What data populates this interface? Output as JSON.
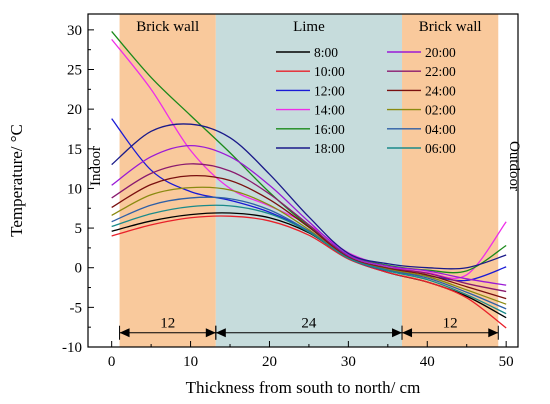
{
  "chart_data": {
    "type": "line",
    "xlabel": "Thickness from south to north/ cm",
    "ylabel": "Temperature/ °C",
    "xlim": [
      -3,
      51.5
    ],
    "ylim": [
      -10,
      32
    ],
    "xticks": [
      0,
      10,
      20,
      30,
      40,
      50
    ],
    "yticks": [
      -10,
      -5,
      0,
      5,
      10,
      15,
      20,
      25,
      30
    ],
    "grid": false,
    "legend_position": "upper center, two columns",
    "regions": [
      {
        "label": "Brick wall",
        "x_start": 1,
        "x_end": 13.2,
        "color": "#f9c99c"
      },
      {
        "label": "Lime",
        "x_start": 13.2,
        "x_end": 36.8,
        "color": "#c6dcdc"
      },
      {
        "label": "Brick wall",
        "x_start": 36.8,
        "x_end": 49,
        "color": "#f9c99c"
      }
    ],
    "side_labels": {
      "left": "Indoor",
      "right": "Outdoor"
    },
    "dimensions": [
      {
        "label": "12",
        "x_start": 1,
        "x_end": 13.2,
        "y": -8.2
      },
      {
        "label": "24",
        "x_start": 13.2,
        "x_end": 36.8,
        "y": -8.2
      },
      {
        "label": "12",
        "x_start": 36.8,
        "x_end": 49,
        "y": -8.2
      }
    ],
    "series": [
      {
        "name": "8:00",
        "color": "#000000",
        "x": [
          0,
          5,
          10,
          15,
          20,
          25,
          30,
          35,
          40,
          45,
          50
        ],
        "y": [
          4.6,
          5.9,
          6.7,
          6.9,
          6.3,
          4.4,
          1.2,
          -0.6,
          -1.8,
          -3.6,
          -6.3
        ]
      },
      {
        "name": "10:00",
        "color": "#e8202a",
        "x": [
          0,
          5,
          10,
          15,
          20,
          25,
          30,
          35,
          40,
          45,
          50
        ],
        "y": [
          4.0,
          5.4,
          6.3,
          6.5,
          5.9,
          4.1,
          1.1,
          -0.6,
          -1.8,
          -3.8,
          -7.6
        ]
      },
      {
        "name": "12:00",
        "color": "#1a1ad6",
        "x": [
          0,
          5,
          10,
          15,
          20,
          25,
          30,
          35,
          40,
          45,
          50
        ],
        "y": [
          18.8,
          12.3,
          9.6,
          8.5,
          7.0,
          4.6,
          1.2,
          -0.4,
          -1.0,
          -1.6,
          0.1
        ]
      },
      {
        "name": "14:00",
        "color": "#ee2ee8",
        "x": [
          0,
          5,
          10,
          15,
          20,
          25,
          30,
          35,
          40,
          45,
          50
        ],
        "y": [
          28.8,
          22.5,
          14.8,
          10.0,
          7.8,
          5.4,
          1.9,
          0.2,
          -0.6,
          -0.9,
          5.8
        ]
      },
      {
        "name": "16:00",
        "color": "#1a8a1a",
        "x": [
          0,
          5,
          10,
          15,
          20,
          25,
          30,
          35,
          40,
          45,
          50
        ],
        "y": [
          29.8,
          24.0,
          19.2,
          14.5,
          9.5,
          5.2,
          1.6,
          0.3,
          -0.3,
          -0.4,
          2.8
        ]
      },
      {
        "name": "18:00",
        "color": "#1a1a8a",
        "x": [
          0,
          5,
          10,
          15,
          20,
          25,
          30,
          35,
          40,
          45,
          50
        ],
        "y": [
          13.0,
          17.2,
          18.1,
          16.4,
          11.8,
          6.4,
          1.8,
          0.5,
          0.0,
          0.0,
          1.6
        ]
      },
      {
        "name": "20:00",
        "color": "#9a1ad6",
        "x": [
          0,
          5,
          10,
          15,
          20,
          25,
          30,
          35,
          40,
          45,
          50
        ],
        "y": [
          10.4,
          14.0,
          15.4,
          14.0,
          10.4,
          5.8,
          1.6,
          0.2,
          -0.4,
          -1.4,
          -2.2
        ]
      },
      {
        "name": "22:00",
        "color": "#8a1a6e",
        "x": [
          0,
          5,
          10,
          15,
          20,
          25,
          30,
          35,
          40,
          45,
          50
        ],
        "y": [
          8.8,
          11.9,
          13.1,
          12.2,
          9.3,
          5.4,
          1.4,
          0.0,
          -0.7,
          -2.0,
          -3.0
        ]
      },
      {
        "name": "24:00",
        "color": "#7a1010",
        "x": [
          0,
          5,
          10,
          15,
          20,
          25,
          30,
          35,
          40,
          45,
          50
        ],
        "y": [
          7.6,
          10.5,
          11.6,
          11.0,
          8.6,
          5.1,
          1.3,
          -0.1,
          -0.9,
          -2.4,
          -3.9
        ]
      },
      {
        "name": "02:00",
        "color": "#8a8a10",
        "x": [
          0,
          5,
          10,
          15,
          20,
          25,
          30,
          35,
          40,
          45,
          50
        ],
        "y": [
          6.6,
          9.2,
          10.1,
          9.8,
          7.9,
          4.8,
          1.2,
          -0.2,
          -1.1,
          -2.8,
          -4.6
        ]
      },
      {
        "name": "04:00",
        "color": "#2e5fa6",
        "x": [
          0,
          5,
          10,
          15,
          20,
          25,
          30,
          35,
          40,
          45,
          50
        ],
        "y": [
          5.8,
          7.9,
          8.8,
          8.7,
          7.3,
          4.6,
          1.2,
          -0.3,
          -1.3,
          -3.1,
          -5.2
        ]
      },
      {
        "name": "06:00",
        "color": "#1a8a8a",
        "x": [
          0,
          5,
          10,
          15,
          20,
          25,
          30,
          35,
          40,
          45,
          50
        ],
        "y": [
          5.2,
          6.8,
          7.7,
          7.8,
          6.8,
          4.5,
          1.2,
          -0.4,
          -1.5,
          -3.4,
          -5.8
        ]
      }
    ]
  }
}
